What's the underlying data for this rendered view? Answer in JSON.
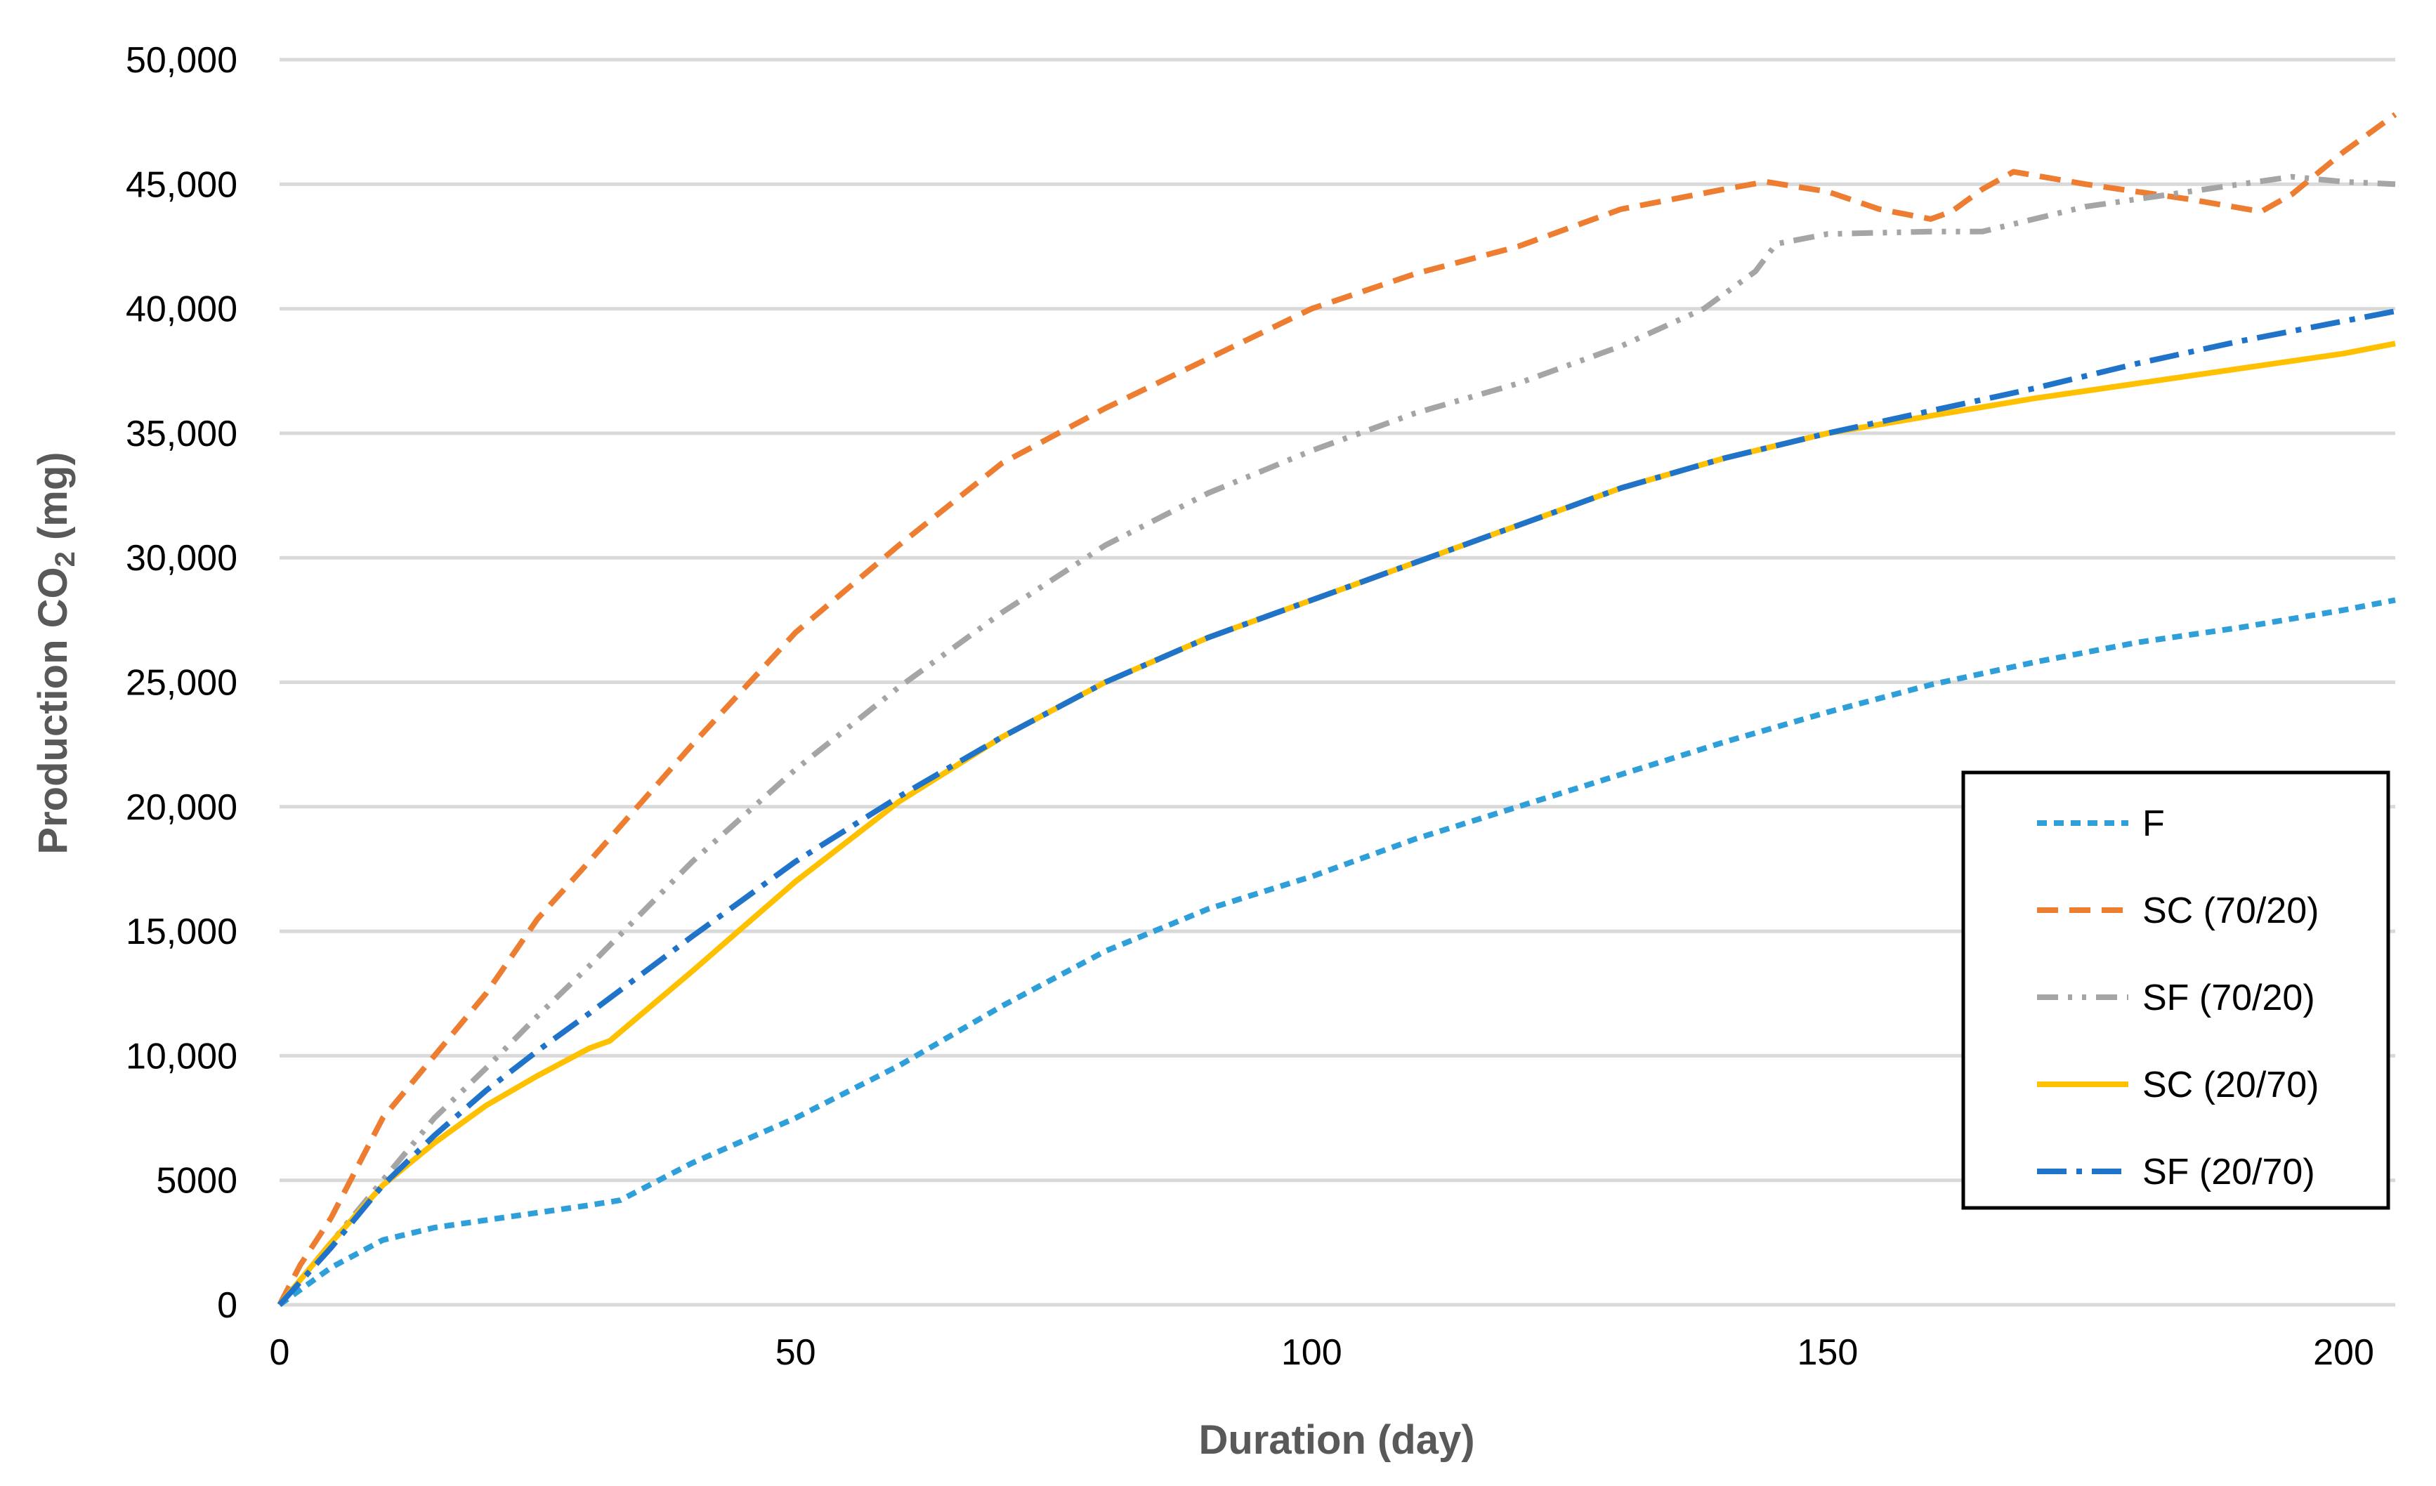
{
  "chart_data": {
    "type": "line",
    "title": "",
    "xlabel": "Duration (day)",
    "ylabel_main": "Production CO",
    "ylabel_sub": "2",
    "ylabel_unit": " (mg)",
    "xlim": [
      0,
      205
    ],
    "ylim": [
      0,
      50000
    ],
    "x_ticks": [
      0,
      50,
      100,
      150,
      200
    ],
    "x_tick_labels": [
      "0",
      "50",
      "100",
      "150",
      "200"
    ],
    "y_ticks": [
      0,
      5000,
      10000,
      15000,
      20000,
      25000,
      30000,
      35000,
      40000,
      45000,
      50000
    ],
    "y_tick_labels": [
      "0",
      "5000",
      "10,000",
      "15,000",
      "20,000",
      "25,000",
      "30,000",
      "35,000",
      "40,000",
      "45,000",
      "50,000"
    ],
    "grid": true,
    "legend_position": "right",
    "series": [
      {
        "name": "F",
        "color": "#2E9FD8",
        "dash": "short-dash",
        "x": [
          0,
          5,
          10,
          15,
          20,
          25,
          30,
          33,
          40,
          50,
          60,
          70,
          80,
          90,
          100,
          110,
          120,
          130,
          140,
          150,
          160,
          170,
          180,
          190,
          200,
          205
        ],
        "y": [
          0,
          1500,
          2600,
          3100,
          3400,
          3700,
          4000,
          4200,
          5700,
          7500,
          9600,
          12000,
          14200,
          15900,
          17200,
          18700,
          20000,
          21300,
          22600,
          23800,
          24900,
          25800,
          26600,
          27200,
          27900,
          28300
        ]
      },
      {
        "name": "SC (70/20)",
        "color": "#ED7D31",
        "dash": "dash",
        "x": [
          0,
          2,
          5,
          10,
          15,
          20,
          25,
          30,
          40,
          50,
          60,
          70,
          80,
          90,
          100,
          110,
          120,
          130,
          140,
          144,
          150,
          155,
          160,
          162,
          165,
          168,
          175,
          185,
          192,
          195,
          200,
          205
        ],
        "y": [
          0,
          1600,
          3500,
          7500,
          10000,
          12500,
          15500,
          17800,
          22500,
          27000,
          30500,
          33800,
          36000,
          38000,
          40000,
          41400,
          42500,
          44000,
          44800,
          45100,
          44700,
          44000,
          43600,
          43900,
          44800,
          45500,
          45000,
          44400,
          43900,
          44600,
          46300,
          47800
        ]
      },
      {
        "name": "SF (70/20)",
        "color": "#A5A5A5",
        "dash": "dash-dot-dot",
        "x": [
          0,
          5,
          10,
          15,
          20,
          25,
          30,
          40,
          50,
          60,
          70,
          80,
          90,
          100,
          110,
          120,
          130,
          138,
          143,
          145,
          150,
          160,
          165,
          175,
          185,
          195,
          200,
          205
        ],
        "y": [
          0,
          2500,
          5000,
          7500,
          9500,
          11600,
          13600,
          17800,
          21500,
          24800,
          27800,
          30500,
          32600,
          34300,
          35800,
          37000,
          38500,
          40000,
          41500,
          42600,
          43000,
          43100,
          43100,
          44100,
          44700,
          45300,
          45100,
          45000
        ]
      },
      {
        "name": "SC (20/70)",
        "color": "#FFC000",
        "dash": "solid",
        "x": [
          0,
          5,
          10,
          15,
          20,
          25,
          30,
          32,
          40,
          50,
          60,
          70,
          80,
          90,
          100,
          110,
          120,
          130,
          140,
          150,
          160,
          170,
          180,
          190,
          200,
          205
        ],
        "y": [
          0,
          2500,
          4800,
          6500,
          8000,
          9200,
          10300,
          10600,
          13400,
          17000,
          20200,
          22800,
          25000,
          26800,
          28300,
          29800,
          31300,
          32800,
          34000,
          35000,
          35700,
          36400,
          37000,
          37600,
          38200,
          38600
        ]
      },
      {
        "name": "SF (20/70)",
        "color": "#1F73C9",
        "dash": "long-dash-dot",
        "x": [
          0,
          5,
          10,
          15,
          20,
          25,
          30,
          40,
          50,
          60,
          70,
          80,
          90,
          100,
          110,
          120,
          130,
          140,
          150,
          160,
          170,
          180,
          190,
          200,
          205
        ],
        "y": [
          0,
          2300,
          4800,
          6800,
          8600,
          10200,
          11700,
          14800,
          17800,
          20400,
          22800,
          25000,
          26800,
          28300,
          29800,
          31300,
          32800,
          34000,
          35000,
          35900,
          36800,
          37800,
          38700,
          39500,
          39900
        ]
      }
    ]
  }
}
